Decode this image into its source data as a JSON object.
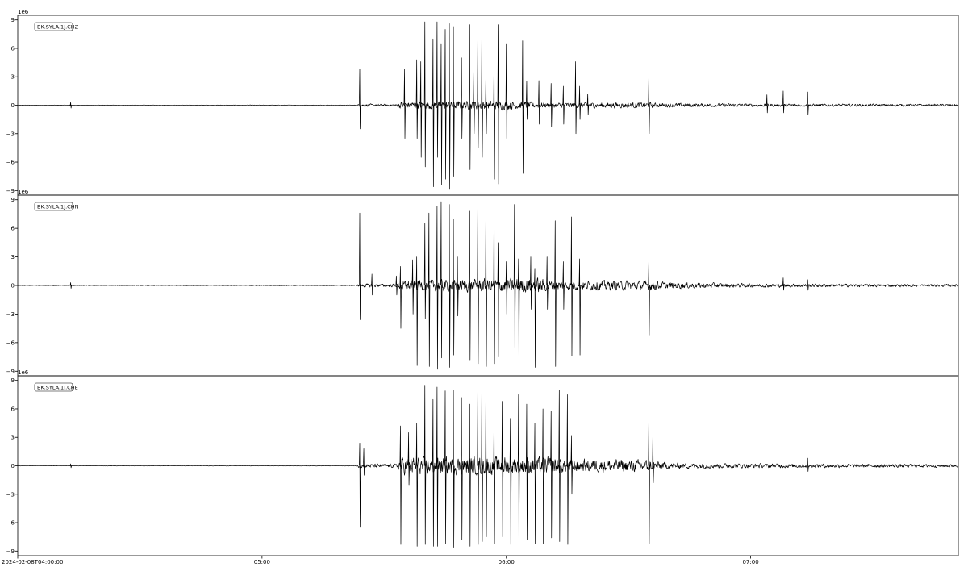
{
  "chart_data": {
    "type": "line",
    "title": "",
    "xlabel": "",
    "ylabel": "",
    "x_axis": {
      "start": "2024-02-08T04:00:00",
      "end": "2024-02-08T07:51:00",
      "ticks": [
        {
          "time": "2024-02-08T04:00:00",
          "label": "2024-02-08T04:00:00"
        },
        {
          "time": "2024-02-08T05:00:00",
          "label": "05:00"
        },
        {
          "time": "2024-02-08T06:00:00",
          "label": "06:00"
        },
        {
          "time": "2024-02-08T07:00:00",
          "label": "07:00"
        }
      ]
    },
    "ylim": [
      -9200000,
      9200000
    ],
    "y_ticks": [
      -9000000,
      -6000000,
      -3000000,
      0,
      3000000,
      6000000,
      9000000
    ],
    "y_tick_labels": [
      "−9",
      "−6",
      "−3",
      "0",
      "3",
      "6",
      "9"
    ],
    "y_offset_label": "1e6",
    "legend_placement": "top-left",
    "grid": false,
    "series": [
      {
        "name": "BK.SYLA.1J.CHZ",
        "color": "#000000",
        "baseline_noise": 30000,
        "coda_noise": [
          {
            "t": "04:00",
            "amp": 30000
          },
          {
            "t": "05:23",
            "amp": 40000
          },
          {
            "t": "05:24",
            "amp": 180000
          },
          {
            "t": "05:33",
            "amp": 150000
          },
          {
            "t": "05:34",
            "amp": 500000
          },
          {
            "t": "06:00",
            "amp": 600000
          },
          {
            "t": "06:10",
            "amp": 350000
          },
          {
            "t": "06:35",
            "amp": 400000
          },
          {
            "t": "06:37",
            "amp": 300000
          },
          {
            "t": "07:00",
            "amp": 200000
          },
          {
            "t": "07:51",
            "amp": 150000
          }
        ],
        "spikes": [
          {
            "t": "04:13",
            "pos": 300000,
            "neg": -300000
          },
          {
            "t": "05:24",
            "pos": 3800000,
            "neg": -2500000
          },
          {
            "t": "05:35",
            "pos": 3800000,
            "neg": -3500000
          },
          {
            "t": "05:38",
            "pos": 4800000,
            "neg": -3500000
          },
          {
            "t": "05:39",
            "pos": 4600000,
            "neg": -5500000
          },
          {
            "t": "05:40",
            "pos": 8800000,
            "neg": -6500000
          },
          {
            "t": "05:42",
            "pos": 7000000,
            "neg": -8600000
          },
          {
            "t": "05:43",
            "pos": 8800000,
            "neg": -5500000
          },
          {
            "t": "05:44",
            "pos": 6500000,
            "neg": -8400000
          },
          {
            "t": "05:45",
            "pos": 8000000,
            "neg": -7800000
          },
          {
            "t": "05:46",
            "pos": 8600000,
            "neg": -8800000
          },
          {
            "t": "05:47",
            "pos": 8300000,
            "neg": -7500000
          },
          {
            "t": "05:49",
            "pos": 5000000,
            "neg": -3500000
          },
          {
            "t": "05:51",
            "pos": 8500000,
            "neg": -6800000
          },
          {
            "t": "05:52",
            "pos": 3500000,
            "neg": -3000000
          },
          {
            "t": "05:53",
            "pos": 7200000,
            "neg": -4500000
          },
          {
            "t": "05:54",
            "pos": 8000000,
            "neg": -5500000
          },
          {
            "t": "05:55",
            "pos": 3500000,
            "neg": -3000000
          },
          {
            "t": "05:57",
            "pos": 5000000,
            "neg": -7800000
          },
          {
            "t": "05:58",
            "pos": 8500000,
            "neg": -8300000
          },
          {
            "t": "06:00",
            "pos": 6500000,
            "neg": -3500000
          },
          {
            "t": "06:04",
            "pos": 6800000,
            "neg": -7200000
          },
          {
            "t": "06:05",
            "pos": 2500000,
            "neg": -1500000
          },
          {
            "t": "06:08",
            "pos": 2600000,
            "neg": -2000000
          },
          {
            "t": "06:11",
            "pos": 2300000,
            "neg": -2300000
          },
          {
            "t": "06:14",
            "pos": 2000000,
            "neg": -2000000
          },
          {
            "t": "06:17",
            "pos": 4600000,
            "neg": -3000000
          },
          {
            "t": "06:18",
            "pos": 2000000,
            "neg": -1500000
          },
          {
            "t": "06:20",
            "pos": 1200000,
            "neg": -1000000
          },
          {
            "t": "06:35",
            "pos": 3000000,
            "neg": -3000000
          },
          {
            "t": "07:04",
            "pos": 1100000,
            "neg": -800000
          },
          {
            "t": "07:08",
            "pos": 1500000,
            "neg": -800000
          },
          {
            "t": "07:14",
            "pos": 1400000,
            "neg": -1000000
          }
        ]
      },
      {
        "name": "BK.SYLA.1J.CHN",
        "color": "#000000",
        "baseline_noise": 30000,
        "coda_noise": [
          {
            "t": "04:00",
            "amp": 30000
          },
          {
            "t": "05:23",
            "amp": 40000
          },
          {
            "t": "05:24",
            "amp": 250000
          },
          {
            "t": "05:33",
            "amp": 200000
          },
          {
            "t": "05:34",
            "amp": 700000
          },
          {
            "t": "06:08",
            "amp": 1000000
          },
          {
            "t": "06:11",
            "amp": 650000
          },
          {
            "t": "06:35",
            "amp": 650000
          },
          {
            "t": "06:36",
            "amp": 700000
          },
          {
            "t": "06:40",
            "amp": 450000
          },
          {
            "t": "07:00",
            "amp": 250000
          },
          {
            "t": "07:51",
            "amp": 170000
          }
        ],
        "spikes": [
          {
            "t": "04:13",
            "pos": 300000,
            "neg": -300000
          },
          {
            "t": "05:24",
            "pos": 7600000,
            "neg": -3600000
          },
          {
            "t": "05:27",
            "pos": 1200000,
            "neg": -1000000
          },
          {
            "t": "05:33",
            "pos": 1000000,
            "neg": -1000000
          },
          {
            "t": "05:34",
            "pos": 2000000,
            "neg": -4500000
          },
          {
            "t": "05:37",
            "pos": 2700000,
            "neg": -3000000
          },
          {
            "t": "05:38",
            "pos": 3000000,
            "neg": -8400000
          },
          {
            "t": "05:40",
            "pos": 6500000,
            "neg": -3500000
          },
          {
            "t": "05:41",
            "pos": 7600000,
            "neg": -8500000
          },
          {
            "t": "05:43",
            "pos": 8300000,
            "neg": -8800000
          },
          {
            "t": "05:44",
            "pos": 8800000,
            "neg": -7600000
          },
          {
            "t": "05:46",
            "pos": 8500000,
            "neg": -8600000
          },
          {
            "t": "05:47",
            "pos": 7000000,
            "neg": -7300000
          },
          {
            "t": "05:48",
            "pos": 3000000,
            "neg": -3200000
          },
          {
            "t": "05:51",
            "pos": 7800000,
            "neg": -7800000
          },
          {
            "t": "05:53",
            "pos": 8500000,
            "neg": -8200000
          },
          {
            "t": "05:55",
            "pos": 8700000,
            "neg": -8500000
          },
          {
            "t": "05:57",
            "pos": 8600000,
            "neg": -8200000
          },
          {
            "t": "05:58",
            "pos": 4500000,
            "neg": -7500000
          },
          {
            "t": "06:00",
            "pos": 2500000,
            "neg": -3000000
          },
          {
            "t": "06:02",
            "pos": 8500000,
            "neg": -6500000
          },
          {
            "t": "06:03",
            "pos": 2800000,
            "neg": -7500000
          },
          {
            "t": "06:06",
            "pos": 3000000,
            "neg": -2500000
          },
          {
            "t": "06:07",
            "pos": 1800000,
            "neg": -8600000
          },
          {
            "t": "06:10",
            "pos": 3000000,
            "neg": -2500000
          },
          {
            "t": "06:12",
            "pos": 6800000,
            "neg": -8500000
          },
          {
            "t": "06:14",
            "pos": 2500000,
            "neg": -2500000
          },
          {
            "t": "06:16",
            "pos": 7200000,
            "neg": -7400000
          },
          {
            "t": "06:18",
            "pos": 2800000,
            "neg": -7300000
          },
          {
            "t": "06:35",
            "pos": 2600000,
            "neg": -5200000
          },
          {
            "t": "07:08",
            "pos": 800000,
            "neg": -500000
          },
          {
            "t": "07:14",
            "pos": 600000,
            "neg": -500000
          }
        ]
      },
      {
        "name": "BK.SYLA.1J.CHE",
        "color": "#000000",
        "baseline_noise": 30000,
        "coda_noise": [
          {
            "t": "04:00",
            "amp": 30000
          },
          {
            "t": "05:23",
            "amp": 40000
          },
          {
            "t": "05:24",
            "amp": 300000
          },
          {
            "t": "05:33",
            "amp": 250000
          },
          {
            "t": "05:34",
            "amp": 1200000
          },
          {
            "t": "06:13",
            "amp": 1200000
          },
          {
            "t": "06:14",
            "amp": 900000
          },
          {
            "t": "06:35",
            "amp": 800000
          },
          {
            "t": "06:37",
            "amp": 600000
          },
          {
            "t": "06:40",
            "amp": 400000
          },
          {
            "t": "07:00",
            "amp": 300000
          },
          {
            "t": "07:51",
            "amp": 200000
          }
        ],
        "spikes": [
          {
            "t": "04:13",
            "pos": 200000,
            "neg": -200000
          },
          {
            "t": "05:24",
            "pos": 2400000,
            "neg": -6500000
          },
          {
            "t": "05:25",
            "pos": 1800000,
            "neg": -1000000
          },
          {
            "t": "05:34",
            "pos": 4200000,
            "neg": -8300000
          },
          {
            "t": "05:36",
            "pos": 3500000,
            "neg": -2000000
          },
          {
            "t": "05:38",
            "pos": 4500000,
            "neg": -8500000
          },
          {
            "t": "05:40",
            "pos": 8500000,
            "neg": -8300000
          },
          {
            "t": "05:42",
            "pos": 7000000,
            "neg": -8500000
          },
          {
            "t": "05:43",
            "pos": 8300000,
            "neg": -8500000
          },
          {
            "t": "05:45",
            "pos": 7900000,
            "neg": -8200000
          },
          {
            "t": "05:47",
            "pos": 8000000,
            "neg": -8600000
          },
          {
            "t": "05:49",
            "pos": 7200000,
            "neg": -7800000
          },
          {
            "t": "05:51",
            "pos": 6500000,
            "neg": -8500000
          },
          {
            "t": "05:53",
            "pos": 8200000,
            "neg": -8300000
          },
          {
            "t": "05:54",
            "pos": 8800000,
            "neg": -8000000
          },
          {
            "t": "05:55",
            "pos": 8500000,
            "neg": -7500000
          },
          {
            "t": "05:57",
            "pos": 5500000,
            "neg": -8200000
          },
          {
            "t": "05:59",
            "pos": 6800000,
            "neg": -7500000
          },
          {
            "t": "06:01",
            "pos": 5000000,
            "neg": -8300000
          },
          {
            "t": "06:03",
            "pos": 7500000,
            "neg": -8000000
          },
          {
            "t": "06:05",
            "pos": 6500000,
            "neg": -7800000
          },
          {
            "t": "06:07",
            "pos": 4500000,
            "neg": -8200000
          },
          {
            "t": "06:09",
            "pos": 6000000,
            "neg": -8200000
          },
          {
            "t": "06:11",
            "pos": 5800000,
            "neg": -7600000
          },
          {
            "t": "06:13",
            "pos": 8000000,
            "neg": -8000000
          },
          {
            "t": "06:15",
            "pos": 7500000,
            "neg": -8300000
          },
          {
            "t": "06:16",
            "pos": 3200000,
            "neg": -3000000
          },
          {
            "t": "06:35",
            "pos": 4800000,
            "neg": -8200000
          },
          {
            "t": "06:36",
            "pos": 3500000,
            "neg": -1800000
          },
          {
            "t": "07:14",
            "pos": 800000,
            "neg": -600000
          }
        ]
      }
    ]
  }
}
